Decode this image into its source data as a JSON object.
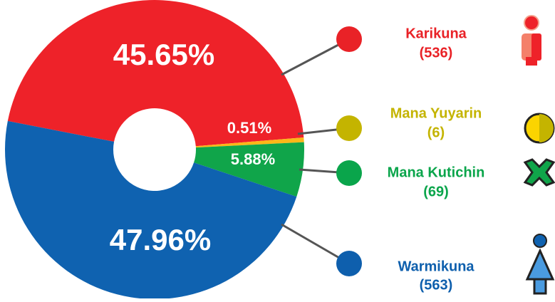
{
  "chart_data": {
    "type": "pie",
    "categories": [
      "Karikuna",
      "Mana Yuyarin",
      "Mana Kutichin",
      "Warmikuna"
    ],
    "values": [
      45.65,
      0.51,
      5.88,
      47.96
    ],
    "value_labels": [
      "45.65%",
      "0.51%",
      "5.88%",
      "47.96%"
    ],
    "counts": [
      536,
      6,
      69,
      563
    ],
    "count_labels": [
      "(536)",
      "(6)",
      "(69)",
      "(563)"
    ],
    "colors": [
      "#ee2229",
      "#fbb718",
      "#10a54a",
      "#0f62b0"
    ],
    "legend_colors": [
      "#e92227",
      "#c4b400",
      "#0aa54b",
      "#0e5fad"
    ]
  }
}
